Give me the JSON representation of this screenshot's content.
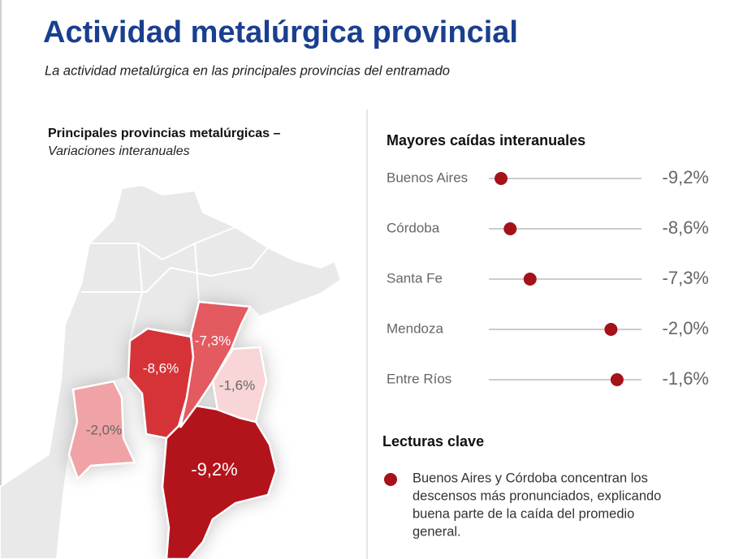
{
  "header": {
    "title": "Actividad metalúrgica provincial",
    "subtitle": "La actividad metalúrgica en las principales provincias del entramado"
  },
  "map": {
    "title": "Principales provincias metalúrgicas –",
    "subtitle": "Variaciones interanuales",
    "provinces": [
      {
        "value": -9.2,
        "label": "-9,2%",
        "color": "#b3131b"
      },
      {
        "value": -8.6,
        "label": "-8,6%",
        "color": "#d63338"
      },
      {
        "value": -7.3,
        "label": "-7,3%",
        "color": "#e35a60"
      },
      {
        "value": -2.0,
        "label": "-2,0%",
        "color": "#f0a3a6"
      },
      {
        "value": -1.6,
        "label": "-1,6%",
        "color": "#f8d5d6"
      }
    ]
  },
  "chart_data": {
    "type": "dot",
    "title": "Mayores caídas interanuales",
    "categories": [
      "Buenos Aires",
      "Córdoba",
      "Santa Fe",
      "Mendoza",
      "Entre Ríos"
    ],
    "values": [
      -9.2,
      -8.6,
      -7.3,
      -2.0,
      -1.6
    ],
    "value_labels": [
      "-9,2%",
      "-8,6%",
      "-7,3%",
      "-2,0%",
      "-1,6%"
    ],
    "color": "#a5121a",
    "xlim": [
      -10,
      0
    ]
  },
  "key_readings": {
    "title": "Lecturas clave",
    "lines": [
      "Buenos Aires y Córdoba concentran los",
      "descensos más pronunciados, explicando",
      "buena parte de la caída del promedio",
      "general."
    ]
  }
}
